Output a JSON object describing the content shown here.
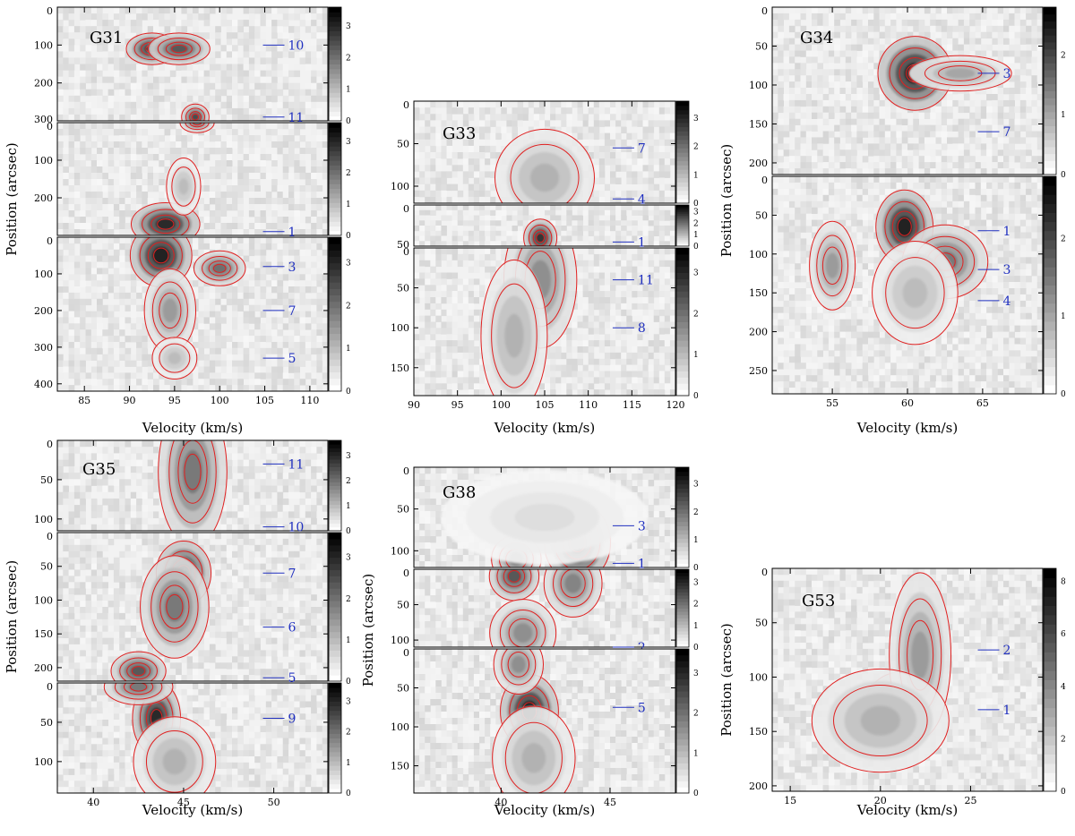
{
  "chart_data": [
    {
      "type": "heatmap",
      "panel_label": "G31",
      "xlabel": "Velocity (km/s)",
      "ylabel": "Position (arcsec)",
      "xlim": [
        82,
        112
      ],
      "xticks": [
        85,
        90,
        95,
        100,
        105,
        110
      ],
      "colormap": "grayscale",
      "contour_color": "red",
      "subpanels": [
        {
          "ylim": [
            0,
            300
          ],
          "yticks": [
            0,
            100,
            200,
            300
          ],
          "colorbar": [
            0,
            1,
            2,
            3
          ],
          "cbmax": 3.6,
          "markers": [
            {
              "label": "10",
              "pos": 100
            },
            {
              "label": "11",
              "pos": 290
            }
          ],
          "blobs": [
            {
              "v": 92.5,
              "p": 110,
              "sv": 1.5,
              "sp": 22,
              "a": 0.9
            },
            {
              "v": 95.5,
              "p": 110,
              "sv": 1.8,
              "sp": 22,
              "a": 0.75
            },
            {
              "v": 97.3,
              "p": 290,
              "sv": 0.8,
              "sp": 18,
              "a": 0.8
            }
          ]
        },
        {
          "ylim": [
            0,
            300
          ],
          "yticks": [
            0,
            100,
            200
          ],
          "colorbar": [
            0,
            1,
            2,
            3
          ],
          "cbmax": 3.6,
          "markers": [
            {
              "label": "1",
              "pos": 290
            }
          ],
          "blobs": [
            {
              "v": 94,
              "p": 270,
              "sv": 2,
              "sp": 30,
              "a": 0.95
            },
            {
              "v": 97.5,
              "p": 0,
              "sv": 1,
              "sp": 14,
              "a": 0.6
            },
            {
              "v": 96,
              "p": 170,
              "sv": 1,
              "sp": 40,
              "a": 0.3
            }
          ]
        },
        {
          "ylim": [
            0,
            420
          ],
          "yticks": [
            0,
            100,
            200,
            300,
            400
          ],
          "colorbar": [
            0,
            1,
            2,
            3
          ],
          "cbmax": 3.6,
          "markers": [
            {
              "label": "3",
              "pos": 80
            },
            {
              "label": "7",
              "pos": 200
            },
            {
              "label": "5",
              "pos": 330
            }
          ],
          "blobs": [
            {
              "v": 93.5,
              "p": 50,
              "sv": 1.8,
              "sp": 45,
              "a": 1
            },
            {
              "v": 100,
              "p": 85,
              "sv": 1.5,
              "sp": 25,
              "a": 0.65
            },
            {
              "v": 94.5,
              "p": 200,
              "sv": 1.5,
              "sp": 60,
              "a": 0.45
            },
            {
              "v": 95,
              "p": 330,
              "sv": 1.3,
              "sp": 30,
              "a": 0.3
            }
          ]
        }
      ]
    },
    {
      "type": "heatmap",
      "panel_label": "G33",
      "xlabel": "Velocity (km/s)",
      "ylabel": "",
      "xlim": [
        90,
        120
      ],
      "xticks": [
        90,
        95,
        100,
        105,
        110,
        115,
        120
      ],
      "colormap": "grayscale",
      "contour_color": "red",
      "subpanels": [
        {
          "ylim": [
            0,
            120
          ],
          "yticks": [
            0,
            50,
            100
          ],
          "colorbar": [
            0,
            1,
            2,
            3
          ],
          "cbmax": 3.6,
          "markers": [
            {
              "label": "7",
              "pos": 55
            },
            {
              "label": "4",
              "pos": 115
            }
          ],
          "blobs": [
            {
              "v": 105,
              "p": 90,
              "sv": 3,
              "sp": 30,
              "a": 0.35
            }
          ]
        },
        {
          "ylim": [
            0,
            50
          ],
          "yticks": [
            0,
            50
          ],
          "colorbar": [
            0,
            1,
            2,
            3
          ],
          "cbmax": 3.6,
          "markers": [
            {
              "label": "1",
              "pos": 45
            }
          ],
          "blobs": [
            {
              "v": 104.5,
              "p": 40,
              "sv": 1,
              "sp": 12,
              "a": 0.9
            }
          ]
        },
        {
          "ylim": [
            0,
            185
          ],
          "yticks": [
            0,
            50,
            100,
            150
          ],
          "colorbar": [
            0,
            1,
            2,
            3
          ],
          "cbmax": 3.6,
          "markers": [
            {
              "label": "11",
              "pos": 40
            },
            {
              "label": "8",
              "pos": 100
            }
          ],
          "blobs": [
            {
              "v": 104.5,
              "p": 40,
              "sv": 2.2,
              "sp": 45,
              "a": 0.5
            },
            {
              "v": 101.5,
              "p": 110,
              "sv": 2,
              "sp": 50,
              "a": 0.35
            }
          ]
        }
      ]
    },
    {
      "type": "heatmap",
      "panel_label": "G34",
      "xlabel": "Velocity (km/s)",
      "ylabel": "Position (arcsec)",
      "xlim": [
        51,
        69
      ],
      "xticks": [
        55,
        60,
        65
      ],
      "colormap": "grayscale",
      "contour_color": "red",
      "subpanels": [
        {
          "ylim": [
            0,
            215
          ],
          "yticks": [
            0,
            50,
            100,
            150,
            200
          ],
          "colorbar": [
            0,
            1,
            2
          ],
          "cbmax": 2.8,
          "markers": [
            {
              "label": "3",
              "pos": 85
            },
            {
              "label": "7",
              "pos": 160
            }
          ],
          "blobs": [
            {
              "v": 60.5,
              "p": 85,
              "sv": 1.3,
              "sp": 25,
              "a": 1
            },
            {
              "v": 63.5,
              "p": 85,
              "sv": 1.8,
              "sp": 12,
              "a": 0.4
            }
          ]
        },
        {
          "ylim": [
            0,
            280
          ],
          "yticks": [
            0,
            50,
            100,
            150,
            200,
            250
          ],
          "colorbar": [
            0,
            1,
            2
          ],
          "cbmax": 2.8,
          "markers": [
            {
              "label": "1",
              "pos": 70
            },
            {
              "label": "3",
              "pos": 120
            },
            {
              "label": "4",
              "pos": 160
            }
          ],
          "blobs": [
            {
              "v": 59.8,
              "p": 65,
              "sv": 1,
              "sp": 25,
              "a": 1
            },
            {
              "v": 62.5,
              "p": 110,
              "sv": 1.5,
              "sp": 25,
              "a": 0.6
            },
            {
              "v": 55,
              "p": 115,
              "sv": 0.8,
              "sp": 30,
              "a": 0.45
            },
            {
              "v": 60.5,
              "p": 150,
              "sv": 1.5,
              "sp": 35,
              "a": 0.3
            }
          ]
        }
      ]
    },
    {
      "type": "heatmap",
      "panel_label": "G35",
      "xlabel": "Velocity (km/s)",
      "ylabel": "Position (arcsec)",
      "xlim": [
        38,
        53
      ],
      "xticks": [
        40,
        45,
        50
      ],
      "colormap": "grayscale",
      "contour_color": "red",
      "subpanels": [
        {
          "ylim": [
            0,
            115
          ],
          "yticks": [
            0,
            50,
            100
          ],
          "colorbar": [
            0,
            1,
            2,
            3
          ],
          "cbmax": 3.6,
          "markers": [
            {
              "label": "11",
              "pos": 30
            },
            {
              "label": "10",
              "pos": 110
            }
          ],
          "blobs": [
            {
              "v": 45.5,
              "p": 40,
              "sv": 1,
              "sp": 50,
              "a": 0.6
            }
          ]
        },
        {
          "ylim": [
            0,
            220
          ],
          "yticks": [
            0,
            50,
            100,
            150,
            200
          ],
          "colorbar": [
            0,
            1,
            2,
            3
          ],
          "cbmax": 3.6,
          "markers": [
            {
              "label": "7",
              "pos": 60
            },
            {
              "label": "6",
              "pos": 140
            },
            {
              "label": "5",
              "pos": 215
            }
          ],
          "blobs": [
            {
              "v": 45,
              "p": 60,
              "sv": 0.8,
              "sp": 25,
              "a": 0.95
            },
            {
              "v": 44.5,
              "p": 110,
              "sv": 1,
              "sp": 40,
              "a": 0.6
            },
            {
              "v": 42.5,
              "p": 205,
              "sv": 0.8,
              "sp": 15,
              "a": 0.75
            }
          ]
        },
        {
          "ylim": [
            0,
            140
          ],
          "yticks": [
            0,
            50,
            100
          ],
          "colorbar": [
            0,
            1,
            2,
            3
          ],
          "cbmax": 3.6,
          "markers": [
            {
              "label": "9",
              "pos": 45
            }
          ],
          "blobs": [
            {
              "v": 43.5,
              "p": 45,
              "sv": 0.7,
              "sp": 25,
              "a": 0.95
            },
            {
              "v": 42.5,
              "p": 5,
              "sv": 1,
              "sp": 12,
              "a": 0.6
            },
            {
              "v": 44.5,
              "p": 100,
              "sv": 1.2,
              "sp": 30,
              "a": 0.35
            }
          ]
        }
      ]
    },
    {
      "type": "heatmap",
      "panel_label": "G38",
      "xlabel": "Velocity (km/s)",
      "ylabel": "Position (arcsec)",
      "xlim": [
        36,
        48
      ],
      "xticks": [
        40,
        45
      ],
      "colormap": "grayscale",
      "contour_color": "red",
      "subpanels": [
        {
          "ylim": [
            0,
            120
          ],
          "yticks": [
            0,
            50,
            100
          ],
          "colorbar": [
            0,
            1,
            2,
            3
          ],
          "cbmax": 3.6,
          "markers": [
            {
              "label": "3",
              "pos": 70
            },
            {
              "label": "1",
              "pos": 115
            }
          ],
          "blobs": [
            {
              "v": 43.5,
              "p": 90,
              "sv": 0.8,
              "sp": 25,
              "a": 1
            },
            {
              "v": 40.7,
              "p": 110,
              "sv": 0.6,
              "sp": 15,
              "a": 0.55
            },
            {
              "v": 42,
              "p": 60,
              "sv": 2.5,
              "sp": 30,
              "a": 0.15
            }
          ]
        },
        {
          "ylim": [
            0,
            110
          ],
          "yticks": [
            0,
            50,
            100
          ],
          "colorbar": [
            0,
            1,
            2,
            3
          ],
          "cbmax": 3.6,
          "markers": [
            {
              "label": "2",
              "pos": 110
            }
          ],
          "blobs": [
            {
              "v": 40.6,
              "p": 10,
              "sv": 0.6,
              "sp": 18,
              "a": 0.75
            },
            {
              "v": 43.3,
              "p": 20,
              "sv": 0.7,
              "sp": 25,
              "a": 0.55
            },
            {
              "v": 41,
              "p": 90,
              "sv": 0.8,
              "sp": 25,
              "a": 0.5
            }
          ]
        },
        {
          "ylim": [
            0,
            185
          ],
          "yticks": [
            0,
            50,
            100,
            150
          ],
          "colorbar": [
            0,
            1,
            2,
            3
          ],
          "cbmax": 3.6,
          "markers": [
            {
              "label": "5",
              "pos": 75
            }
          ],
          "blobs": [
            {
              "v": 41.3,
              "p": 80,
              "sv": 0.7,
              "sp": 25,
              "a": 1
            },
            {
              "v": 40.8,
              "p": 20,
              "sv": 0.6,
              "sp": 20,
              "a": 0.5
            },
            {
              "v": 41.5,
              "p": 140,
              "sv": 1,
              "sp": 35,
              "a": 0.35
            }
          ]
        }
      ]
    },
    {
      "type": "heatmap",
      "panel_label": "G53",
      "xlabel": "Velocity (km/s)",
      "ylabel": "Position (arcsec)",
      "xlim": [
        14,
        29
      ],
      "xticks": [
        15,
        20,
        25
      ],
      "colormap": "grayscale",
      "contour_color": "red",
      "subpanels": [
        {
          "ylim": [
            0,
            205
          ],
          "yticks": [
            0,
            50,
            100,
            150,
            200
          ],
          "colorbar": [
            0,
            2,
            4,
            6,
            8
          ],
          "cbmax": 8.5,
          "markers": [
            {
              "label": "2",
              "pos": 75
            },
            {
              "label": "1",
              "pos": 130
            }
          ],
          "blobs": [
            {
              "v": 21,
              "p": 130,
              "sv": 1,
              "sp": 18,
              "a": 1
            },
            {
              "v": 22.2,
              "p": 80,
              "sv": 0.9,
              "sp": 40,
              "a": 0.45
            },
            {
              "v": 20,
              "p": 140,
              "sv": 2,
              "sp": 25,
              "a": 0.35
            }
          ]
        }
      ]
    }
  ]
}
